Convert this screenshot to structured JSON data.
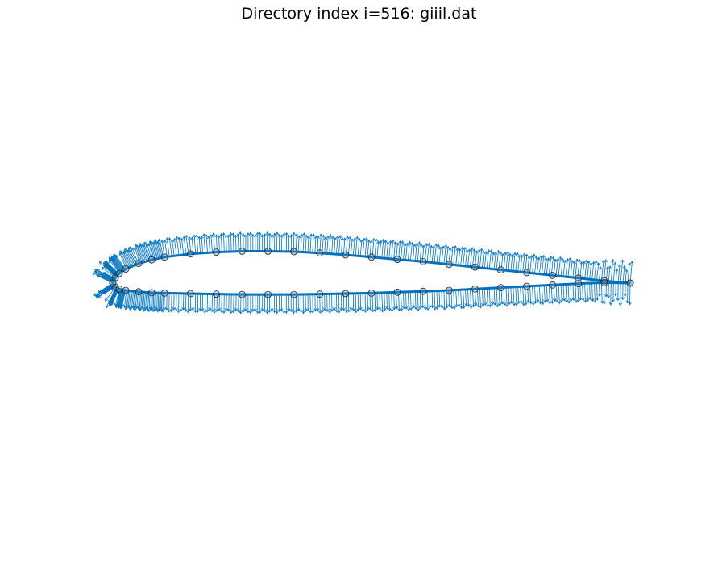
{
  "title": "Directory index i=516: giiil.dat",
  "colors": {
    "profile": "#0072BD",
    "arrows": "#0072BD",
    "markers_edge": "#222222",
    "markers_face": "#5a8fbf"
  },
  "chart_data": {
    "type": "airfoil_profile",
    "name": "giiil.dat",
    "axes_visible": false,
    "grid": false,
    "legend": "none",
    "xlim": [
      -0.02,
      1.02
    ],
    "ylim": [
      -0.5,
      0.5
    ],
    "upper_surface": [
      [
        0.0,
        0.0
      ],
      [
        0.005,
        0.012
      ],
      [
        0.0125,
        0.021
      ],
      [
        0.025,
        0.031
      ],
      [
        0.05,
        0.043
      ],
      [
        0.075,
        0.051
      ],
      [
        0.1,
        0.057
      ],
      [
        0.15,
        0.064
      ],
      [
        0.2,
        0.068
      ],
      [
        0.25,
        0.07
      ],
      [
        0.3,
        0.07
      ],
      [
        0.35,
        0.069
      ],
      [
        0.4,
        0.066
      ],
      [
        0.45,
        0.062
      ],
      [
        0.5,
        0.057
      ],
      [
        0.55,
        0.052
      ],
      [
        0.6,
        0.047
      ],
      [
        0.65,
        0.041
      ],
      [
        0.7,
        0.035
      ],
      [
        0.75,
        0.029
      ],
      [
        0.8,
        0.023
      ],
      [
        0.85,
        0.017
      ],
      [
        0.9,
        0.011
      ],
      [
        0.95,
        0.005
      ],
      [
        1.0,
        0.0
      ]
    ],
    "lower_surface": [
      [
        0.0,
        0.0
      ],
      [
        0.005,
        -0.009
      ],
      [
        0.0125,
        -0.013
      ],
      [
        0.025,
        -0.016
      ],
      [
        0.05,
        -0.019
      ],
      [
        0.075,
        -0.021
      ],
      [
        0.1,
        -0.022
      ],
      [
        0.15,
        -0.023
      ],
      [
        0.2,
        -0.024
      ],
      [
        0.25,
        -0.025
      ],
      [
        0.3,
        -0.025
      ],
      [
        0.35,
        -0.025
      ],
      [
        0.4,
        -0.024
      ],
      [
        0.45,
        -0.023
      ],
      [
        0.5,
        -0.022
      ],
      [
        0.55,
        -0.02
      ],
      [
        0.6,
        -0.018
      ],
      [
        0.65,
        -0.016
      ],
      [
        0.7,
        -0.013
      ],
      [
        0.75,
        -0.01
      ],
      [
        0.8,
        -0.007
      ],
      [
        0.85,
        -0.004
      ],
      [
        0.9,
        -0.001
      ],
      [
        0.95,
        0.001
      ],
      [
        1.0,
        0.0
      ]
    ]
  }
}
